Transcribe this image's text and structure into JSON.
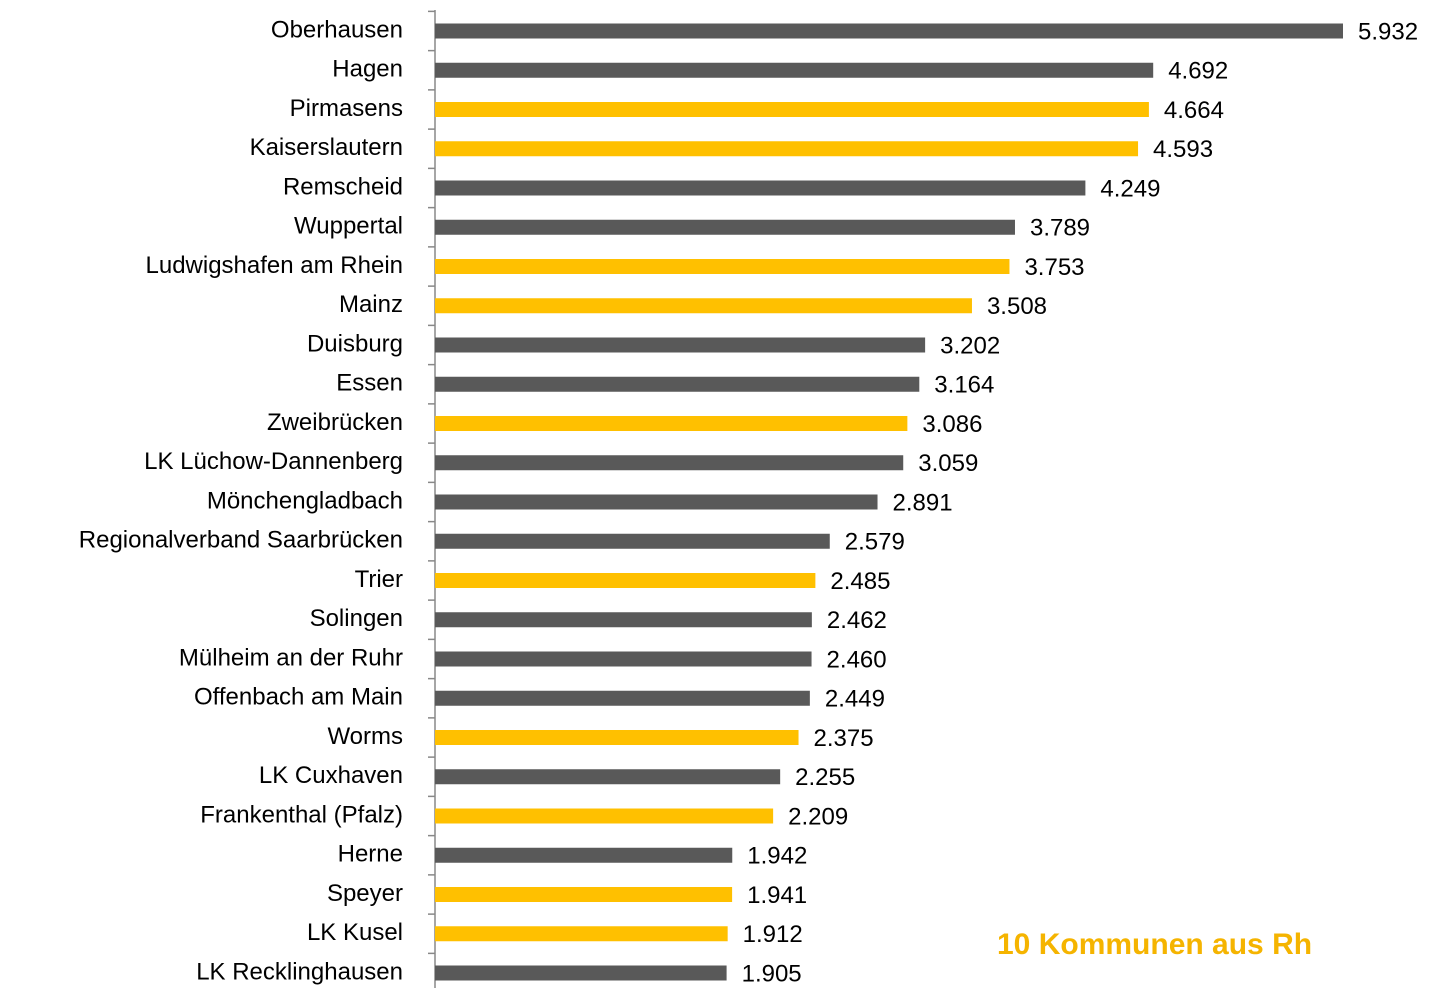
{
  "chart_data": {
    "type": "barh",
    "categories": [
      "Oberhausen",
      "Hagen",
      "Pirmasens",
      "Kaiserslautern",
      "Remscheid",
      "Wuppertal",
      "Ludwigshafen am Rhein",
      "Mainz",
      "Duisburg",
      "Essen",
      "Zweibrücken",
      "LK Lüchow-Dannenberg",
      "Mönchengladbach",
      "Regionalverband Saarbrücken",
      "Trier",
      "Solingen",
      "Mülheim an der Ruhr",
      "Offenbach am Main",
      "Worms",
      "LK Cuxhaven",
      "Frankenthal (Pfalz)",
      "Herne",
      "Speyer",
      "LK Kusel",
      "LK Recklinghausen"
    ],
    "values": [
      5932,
      4692,
      4664,
      4593,
      4249,
      3789,
      3753,
      3508,
      3202,
      3164,
      3086,
      3059,
      2891,
      2579,
      2485,
      2462,
      2460,
      2449,
      2375,
      2255,
      2209,
      1942,
      1941,
      1912,
      1905
    ],
    "value_labels": [
      "5.932",
      "4.692",
      "4.664",
      "4.593",
      "4.249",
      "3.789",
      "3.753",
      "3.508",
      "3.202",
      "3.164",
      "3.086",
      "3.059",
      "2.891",
      "2.579",
      "2.485",
      "2.462",
      "2.460",
      "2.449",
      "2.375",
      "2.255",
      "2.209",
      "1.942",
      "1.941",
      "1.912",
      "1.905"
    ],
    "colors": [
      "#595959",
      "#595959",
      "#ffc000",
      "#ffc000",
      "#595959",
      "#595959",
      "#ffc000",
      "#ffc000",
      "#595959",
      "#595959",
      "#ffc000",
      "#595959",
      "#595959",
      "#595959",
      "#ffc000",
      "#595959",
      "#595959",
      "#595959",
      "#ffc000",
      "#595959",
      "#ffc000",
      "#595959",
      "#ffc000",
      "#ffc000",
      "#595959"
    ],
    "annotation": "10 Kommunen aus Rh"
  }
}
